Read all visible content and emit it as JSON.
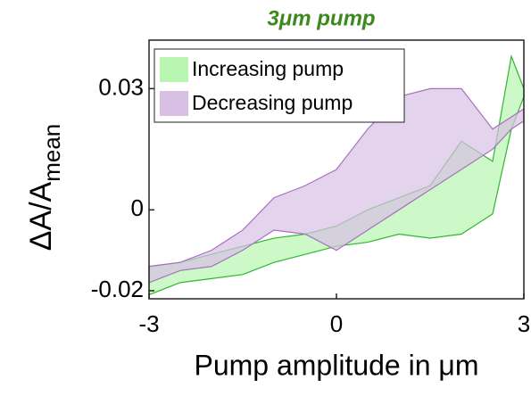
{
  "chart_data": {
    "type": "band",
    "title": "3μm pump",
    "xlabel": "Pump amplitude in μm",
    "ylabel": {
      "text": "ΔA/A",
      "subscript": "mean"
    },
    "xlim": [
      -3,
      3
    ],
    "ylim": [
      -0.022,
      0.042
    ],
    "xticks": [
      -3,
      0,
      3
    ],
    "yticks": [
      -0.02,
      0,
      0.03
    ],
    "legend": "upper-left",
    "series": [
      {
        "name": "Increasing pump",
        "color": "#2fb82f",
        "fill": "#b8f5b0",
        "x": [
          -3,
          -2.5,
          -2,
          -1.5,
          -1,
          -0.5,
          0,
          0.5,
          1,
          1.5,
          2,
          2.5,
          2.8,
          3
        ],
        "lower": [
          -0.021,
          -0.018,
          -0.017,
          -0.016,
          -0.013,
          -0.011,
          -0.009,
          -0.008,
          -0.006,
          -0.007,
          -0.006,
          -0.001,
          0.02,
          0.028
        ],
        "upper": [
          -0.014,
          -0.013,
          -0.011,
          -0.009,
          -0.007,
          -0.006,
          -0.004,
          0.0,
          0.003,
          0.006,
          0.017,
          0.012,
          0.038,
          0.03
        ]
      },
      {
        "name": "Decreasing pump",
        "color": "#a870c0",
        "fill": "#d8c0e4",
        "x": [
          -3,
          -2.5,
          -2,
          -1.5,
          -1,
          -0.5,
          0,
          0.5,
          1,
          1.5,
          2,
          2.5,
          2.8,
          3
        ],
        "lower": [
          -0.018,
          -0.015,
          -0.014,
          -0.01,
          -0.005,
          -0.006,
          -0.01,
          -0.005,
          0.0,
          0.005,
          0.01,
          0.015,
          0.02,
          0.022
        ],
        "upper": [
          -0.014,
          -0.013,
          -0.01,
          -0.005,
          0.003,
          0.006,
          0.01,
          0.02,
          0.028,
          0.03,
          0.03,
          0.02,
          0.023,
          0.025
        ]
      }
    ]
  }
}
